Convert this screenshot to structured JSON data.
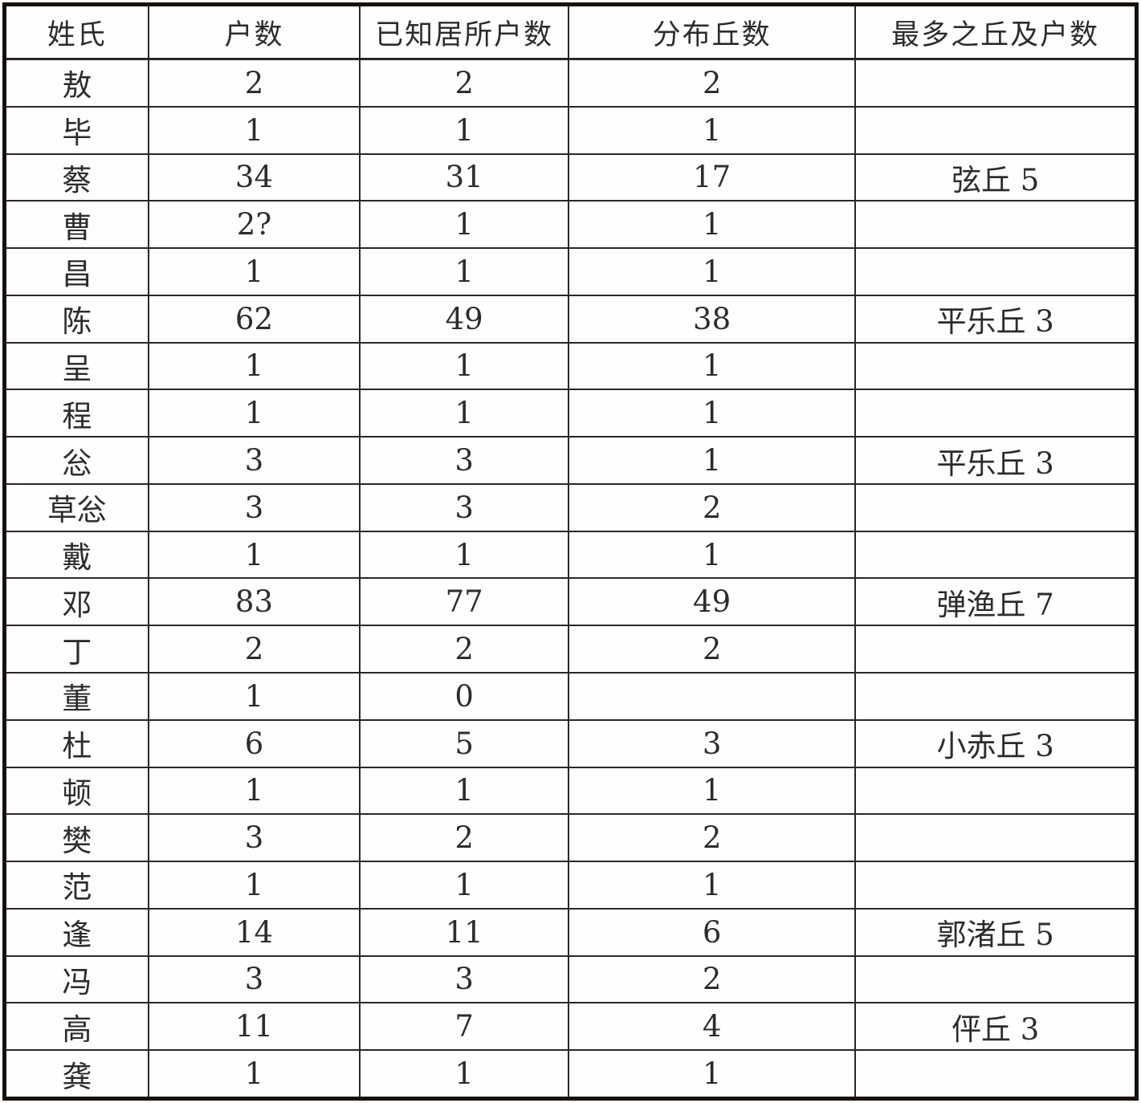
{
  "table": {
    "columns": [
      "姓氏",
      "户数",
      "已知居所户数",
      "分布丘数",
      "最多之丘及户数"
    ],
    "rows": [
      [
        "敖",
        "2",
        "2",
        "2",
        ""
      ],
      [
        "毕",
        "1",
        "1",
        "1",
        ""
      ],
      [
        "蔡",
        "34",
        "31",
        "17",
        "弦丘 5"
      ],
      [
        "曹",
        "2?",
        "1",
        "1",
        ""
      ],
      [
        "昌",
        "1",
        "1",
        "1",
        ""
      ],
      [
        "陈",
        "62",
        "49",
        "38",
        "平乐丘 3"
      ],
      [
        "呈",
        "1",
        "1",
        "1",
        ""
      ],
      [
        "程",
        "1",
        "1",
        "1",
        ""
      ],
      [
        "忩",
        "3",
        "3",
        "1",
        "平乐丘 3"
      ],
      [
        "草忩",
        "3",
        "3",
        "2",
        ""
      ],
      [
        "戴",
        "1",
        "1",
        "1",
        ""
      ],
      [
        "邓",
        "83",
        "77",
        "49",
        "弹渔丘 7"
      ],
      [
        "丁",
        "2",
        "2",
        "2",
        ""
      ],
      [
        "董",
        "1",
        "0",
        "",
        ""
      ],
      [
        "杜",
        "6",
        "5",
        "3",
        "小赤丘 3"
      ],
      [
        "顿",
        "1",
        "1",
        "1",
        ""
      ],
      [
        "樊",
        "3",
        "2",
        "2",
        ""
      ],
      [
        "范",
        "1",
        "1",
        "1",
        ""
      ],
      [
        "逢",
        "14",
        "11",
        "6",
        "郭渚丘 5"
      ],
      [
        "冯",
        "3",
        "3",
        "2",
        ""
      ],
      [
        "高",
        "11",
        "7",
        "4",
        "伻丘 3"
      ],
      [
        "龚",
        "1",
        "1",
        "1",
        ""
      ]
    ]
  }
}
